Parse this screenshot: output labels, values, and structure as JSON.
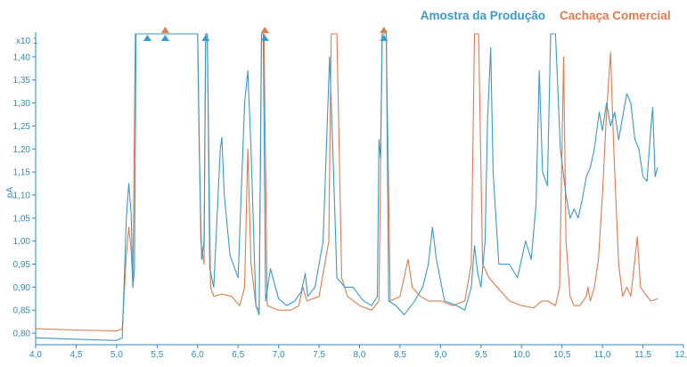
{
  "chart_data": {
    "type": "line",
    "y_axis_label": "pA",
    "y_multiplier_label": "x10 1",
    "x_ticks": [
      "4,0",
      "4,5",
      "5,0",
      "5,5",
      "6,0",
      "6,5",
      "7,0",
      "7,5",
      "8,0",
      "8,5",
      "9,0",
      "9,5",
      "10,0",
      "10,5",
      "11,0",
      "11,5",
      "12,0"
    ],
    "y_ticks": [
      "0,80",
      "0,85",
      "0,90",
      "0,95",
      "1,00",
      "1,05",
      "1,10",
      "1,15",
      "1,20",
      "1,25",
      "1,30",
      "1,35",
      "1,40"
    ],
    "xlim": [
      4.0,
      12.0
    ],
    "ylim": [
      0.775,
      1.45
    ],
    "grid": false,
    "legend_position": "top-right",
    "colors": {
      "axis": "#2E8BC0",
      "series_blue": "#3A9AC9",
      "series_orange": "#E07B4E"
    },
    "series": [
      {
        "name": "Amostra da Produção",
        "color": "#3A9AC9",
        "points": [
          [
            4.0,
            0.79
          ],
          [
            4.5,
            0.787
          ],
          [
            5.0,
            0.784
          ],
          [
            5.07,
            0.79
          ],
          [
            5.12,
            1.05
          ],
          [
            5.15,
            1.125
          ],
          [
            5.18,
            1.06
          ],
          [
            5.2,
            0.9
          ],
          [
            5.22,
            0.94
          ],
          [
            5.24,
            1.45
          ],
          [
            5.26,
            1.45
          ],
          [
            6.0,
            1.45
          ],
          [
            6.02,
            1.2
          ],
          [
            6.05,
            0.96
          ],
          [
            6.08,
            1.0
          ],
          [
            6.1,
            1.45
          ],
          [
            6.12,
            1.45
          ],
          [
            6.15,
            0.94
          ],
          [
            6.2,
            0.9
          ],
          [
            6.28,
            1.2
          ],
          [
            6.3,
            1.225
          ],
          [
            6.33,
            1.1
          ],
          [
            6.4,
            0.97
          ],
          [
            6.5,
            0.92
          ],
          [
            6.58,
            1.3
          ],
          [
            6.62,
            1.37
          ],
          [
            6.66,
            1.2
          ],
          [
            6.72,
            0.86
          ],
          [
            6.76,
            0.84
          ],
          [
            6.79,
            1.45
          ],
          [
            6.81,
            1.45
          ],
          [
            6.84,
            0.87
          ],
          [
            6.9,
            0.94
          ],
          [
            7.0,
            0.875
          ],
          [
            7.1,
            0.86
          ],
          [
            7.2,
            0.87
          ],
          [
            7.28,
            0.89
          ],
          [
            7.33,
            0.93
          ],
          [
            7.36,
            0.88
          ],
          [
            7.45,
            0.9
          ],
          [
            7.55,
            1.0
          ],
          [
            7.63,
            1.4
          ],
          [
            7.67,
            1.2
          ],
          [
            7.72,
            0.92
          ],
          [
            7.82,
            0.9
          ],
          [
            7.92,
            0.9
          ],
          [
            8.05,
            0.87
          ],
          [
            8.15,
            0.86
          ],
          [
            8.22,
            0.88
          ],
          [
            8.24,
            1.22
          ],
          [
            8.26,
            1.18
          ],
          [
            8.28,
            1.45
          ],
          [
            8.33,
            1.45
          ],
          [
            8.36,
            0.87
          ],
          [
            8.45,
            0.86
          ],
          [
            8.55,
            0.84
          ],
          [
            8.68,
            0.87
          ],
          [
            8.78,
            0.9
          ],
          [
            8.85,
            0.95
          ],
          [
            8.9,
            1.03
          ],
          [
            8.95,
            0.96
          ],
          [
            9.05,
            0.87
          ],
          [
            9.2,
            0.86
          ],
          [
            9.3,
            0.85
          ],
          [
            9.38,
            0.9
          ],
          [
            9.42,
            0.99
          ],
          [
            9.46,
            0.93
          ],
          [
            9.5,
            0.9
          ],
          [
            9.55,
            1.0
          ],
          [
            9.58,
            1.26
          ],
          [
            9.62,
            1.42
          ],
          [
            9.65,
            1.15
          ],
          [
            9.72,
            0.95
          ],
          [
            9.85,
            0.95
          ],
          [
            9.95,
            0.92
          ],
          [
            10.05,
            1.0
          ],
          [
            10.12,
            0.96
          ],
          [
            10.18,
            1.08
          ],
          [
            10.22,
            1.37
          ],
          [
            10.26,
            1.15
          ],
          [
            10.32,
            1.12
          ],
          [
            10.36,
            1.45
          ],
          [
            10.42,
            1.45
          ],
          [
            10.48,
            1.2
          ],
          [
            10.55,
            1.1
          ],
          [
            10.6,
            1.05
          ],
          [
            10.65,
            1.07
          ],
          [
            10.7,
            1.05
          ],
          [
            10.75,
            1.09
          ],
          [
            10.8,
            1.14
          ],
          [
            10.85,
            1.16
          ],
          [
            10.9,
            1.2
          ],
          [
            10.96,
            1.28
          ],
          [
            11.0,
            1.24
          ],
          [
            11.05,
            1.3
          ],
          [
            11.1,
            1.25
          ],
          [
            11.15,
            1.28
          ],
          [
            11.2,
            1.22
          ],
          [
            11.25,
            1.27
          ],
          [
            11.3,
            1.32
          ],
          [
            11.35,
            1.3
          ],
          [
            11.4,
            1.22
          ],
          [
            11.45,
            1.2
          ],
          [
            11.5,
            1.14
          ],
          [
            11.55,
            1.13
          ],
          [
            11.6,
            1.25
          ],
          [
            11.62,
            1.29
          ],
          [
            11.65,
            1.14
          ],
          [
            11.68,
            1.16
          ]
        ]
      },
      {
        "name": "Cachaça Comercial",
        "color": "#E07B4E",
        "points": [
          [
            4.0,
            0.81
          ],
          [
            4.5,
            0.807
          ],
          [
            5.0,
            0.805
          ],
          [
            5.07,
            0.81
          ],
          [
            5.12,
            0.97
          ],
          [
            5.15,
            1.03
          ],
          [
            5.18,
            0.98
          ],
          [
            5.2,
            0.9
          ],
          [
            5.23,
            1.45
          ],
          [
            5.26,
            1.45
          ],
          [
            6.0,
            1.45
          ],
          [
            6.04,
            1.0
          ],
          [
            6.08,
            0.95
          ],
          [
            6.1,
            1.45
          ],
          [
            6.12,
            1.45
          ],
          [
            6.16,
            0.9
          ],
          [
            6.2,
            0.88
          ],
          [
            6.3,
            0.885
          ],
          [
            6.42,
            0.88
          ],
          [
            6.52,
            0.86
          ],
          [
            6.58,
            0.9
          ],
          [
            6.62,
            1.2
          ],
          [
            6.66,
            0.95
          ],
          [
            6.72,
            0.86
          ],
          [
            6.76,
            0.85
          ],
          [
            6.79,
            1.45
          ],
          [
            6.82,
            1.45
          ],
          [
            6.86,
            0.86
          ],
          [
            7.0,
            0.85
          ],
          [
            7.15,
            0.85
          ],
          [
            7.25,
            0.86
          ],
          [
            7.3,
            0.9
          ],
          [
            7.35,
            0.87
          ],
          [
            7.5,
            0.88
          ],
          [
            7.62,
            1.0
          ],
          [
            7.65,
            1.45
          ],
          [
            7.72,
            1.45
          ],
          [
            7.78,
            0.92
          ],
          [
            7.85,
            0.88
          ],
          [
            8.0,
            0.86
          ],
          [
            8.15,
            0.85
          ],
          [
            8.24,
            0.87
          ],
          [
            8.28,
            1.45
          ],
          [
            8.33,
            1.45
          ],
          [
            8.38,
            0.87
          ],
          [
            8.5,
            0.88
          ],
          [
            8.6,
            0.96
          ],
          [
            8.65,
            0.9
          ],
          [
            8.75,
            0.88
          ],
          [
            8.85,
            0.87
          ],
          [
            9.0,
            0.87
          ],
          [
            9.15,
            0.86
          ],
          [
            9.3,
            0.87
          ],
          [
            9.38,
            0.95
          ],
          [
            9.42,
            1.45
          ],
          [
            9.47,
            1.45
          ],
          [
            9.52,
            0.95
          ],
          [
            9.6,
            0.92
          ],
          [
            9.7,
            0.9
          ],
          [
            9.85,
            0.87
          ],
          [
            10.0,
            0.86
          ],
          [
            10.15,
            0.855
          ],
          [
            10.25,
            0.87
          ],
          [
            10.32,
            0.87
          ],
          [
            10.42,
            0.86
          ],
          [
            10.47,
            0.9
          ],
          [
            10.52,
            1.4
          ],
          [
            10.55,
            1.0
          ],
          [
            10.6,
            0.88
          ],
          [
            10.65,
            0.86
          ],
          [
            10.72,
            0.86
          ],
          [
            10.8,
            0.88
          ],
          [
            10.82,
            0.9
          ],
          [
            10.85,
            0.87
          ],
          [
            10.9,
            0.9
          ],
          [
            10.95,
            0.96
          ],
          [
            11.0,
            1.1
          ],
          [
            11.05,
            1.28
          ],
          [
            11.1,
            1.41
          ],
          [
            11.14,
            1.2
          ],
          [
            11.2,
            0.95
          ],
          [
            11.25,
            0.88
          ],
          [
            11.3,
            0.9
          ],
          [
            11.35,
            0.88
          ],
          [
            11.4,
            0.96
          ],
          [
            11.43,
            1.01
          ],
          [
            11.47,
            0.9
          ],
          [
            11.55,
            0.88
          ],
          [
            11.6,
            0.87
          ],
          [
            11.68,
            0.875
          ]
        ]
      }
    ],
    "markers": [
      {
        "x": 5.38,
        "series": "Amostra da Produção"
      },
      {
        "x": 5.6,
        "series": "Amostra da Produção"
      },
      {
        "x": 5.6,
        "series": "Cachaça Comercial"
      },
      {
        "x": 6.1,
        "series": "Amostra da Produção"
      },
      {
        "x": 6.83,
        "series": "Amostra da Produção"
      },
      {
        "x": 6.83,
        "series": "Cachaça Comercial"
      },
      {
        "x": 8.3,
        "series": "Amostra da Produção"
      },
      {
        "x": 8.3,
        "series": "Cachaça Comercial"
      }
    ]
  }
}
